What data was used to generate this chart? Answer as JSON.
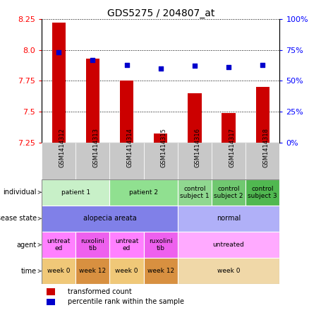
{
  "title": "GDS5275 / 204807_at",
  "samples": [
    "GSM1414312",
    "GSM1414313",
    "GSM1414314",
    "GSM1414315",
    "GSM1414316",
    "GSM1414317",
    "GSM1414318"
  ],
  "red_values": [
    8.22,
    7.93,
    7.75,
    7.32,
    7.65,
    7.49,
    7.7
  ],
  "blue_values": [
    73,
    67,
    63,
    60,
    62,
    61,
    63
  ],
  "ylim_left": [
    7.25,
    8.25
  ],
  "ylim_right": [
    0,
    100
  ],
  "yticks_left": [
    7.25,
    7.5,
    7.75,
    8.0,
    8.25
  ],
  "yticks_right": [
    0,
    25,
    50,
    75,
    100
  ],
  "row_labels": [
    "individual",
    "disease state",
    "agent",
    "time"
  ],
  "individual_data": [
    {
      "label": "patient 1",
      "cols": [
        0,
        1
      ],
      "color": "#c8f0c8"
    },
    {
      "label": "patient 2",
      "cols": [
        2,
        3
      ],
      "color": "#90e090"
    },
    {
      "label": "control\nsubject 1",
      "cols": [
        4
      ],
      "color": "#90d890"
    },
    {
      "label": "control\nsubject 2",
      "cols": [
        5
      ],
      "color": "#70c870"
    },
    {
      "label": "control\nsubject 3",
      "cols": [
        6
      ],
      "color": "#50b850"
    }
  ],
  "disease_data": [
    {
      "label": "alopecia areata",
      "cols": [
        0,
        1,
        2,
        3
      ],
      "color": "#8080e8"
    },
    {
      "label": "normal",
      "cols": [
        4,
        5,
        6
      ],
      "color": "#b0b0f8"
    }
  ],
  "agent_data": [
    {
      "label": "untreat\ned",
      "cols": [
        0
      ],
      "color": "#ff80ff"
    },
    {
      "label": "ruxolini\ntib",
      "cols": [
        1
      ],
      "color": "#ee60ee"
    },
    {
      "label": "untreat\ned",
      "cols": [
        2
      ],
      "color": "#ff80ff"
    },
    {
      "label": "ruxolini\ntib",
      "cols": [
        3
      ],
      "color": "#ee60ee"
    },
    {
      "label": "untreated",
      "cols": [
        4,
        5,
        6
      ],
      "color": "#ffaaff"
    }
  ],
  "time_data": [
    {
      "label": "week 0",
      "cols": [
        0
      ],
      "color": "#f0c878"
    },
    {
      "label": "week 12",
      "cols": [
        1
      ],
      "color": "#d89040"
    },
    {
      "label": "week 0",
      "cols": [
        2
      ],
      "color": "#f0c878"
    },
    {
      "label": "week 12",
      "cols": [
        3
      ],
      "color": "#d89040"
    },
    {
      "label": "week 0",
      "cols": [
        4,
        5,
        6
      ],
      "color": "#f0d8a8"
    }
  ],
  "bar_color": "#cc0000",
  "dot_color": "#0000cc",
  "sample_bg": "#c8c8c8"
}
